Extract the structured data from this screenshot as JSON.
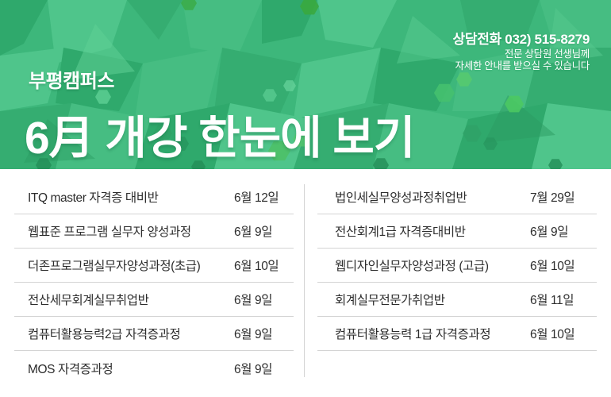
{
  "header": {
    "phone": "상담전화 032) 515-8279",
    "phone_sub_line1": "전문 상담원 선생님께",
    "phone_sub_line2": "자세한 안내를 받으실 수 있습니다",
    "campus": "부평캠퍼스",
    "title": "6月 개강 한눈에 보기",
    "accent_color": "#3db77b"
  },
  "schedule": {
    "columns": [
      "course",
      "start_date"
    ],
    "left_column": [
      {
        "course": "ITQ master 자격증 대비반",
        "date": "6월 12일"
      },
      {
        "course": "웹표준 프로그램 실무자 양성과정",
        "date": "6월 9일"
      },
      {
        "course": "더존프로그램실무자양성과정(초급)",
        "date": "6월 10일"
      },
      {
        "course": "전산세무회계실무취업반",
        "date": "6월 9일"
      },
      {
        "course": "컴퓨터활용능력2급 자격증과정",
        "date": "6월 9일"
      },
      {
        "course": "MOS 자격증과정",
        "date": "6월 9일"
      }
    ],
    "right_column": [
      {
        "course": "법인세실무양성과정취업반",
        "date": "7월 29일"
      },
      {
        "course": "전산회계1급 자격증대비반",
        "date": "6월 9일"
      },
      {
        "course": "웹디자인실무자양성과정 (고급)",
        "date": "6월 10일"
      },
      {
        "course": "회계실무전문가취업반",
        "date": "6월 11일"
      },
      {
        "course": "컴퓨터활용능력 1급 자격증과정",
        "date": "6월 10일"
      }
    ]
  }
}
